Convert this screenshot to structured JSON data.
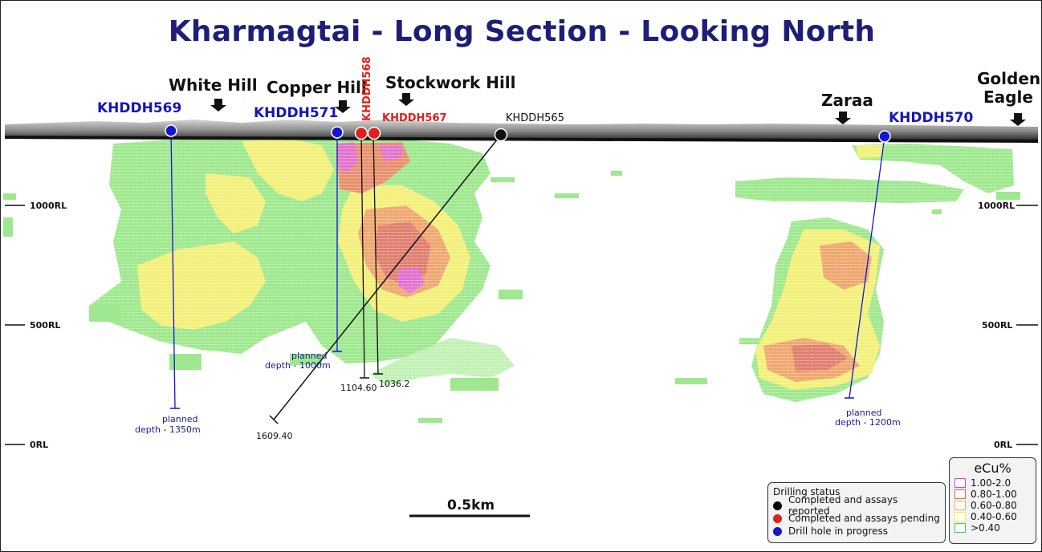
{
  "title": "Kharmagtai - Long Section - Looking North",
  "places": [
    {
      "id": "white-hill",
      "label": "White Hill"
    },
    {
      "id": "copper-hill",
      "label": "Copper Hill"
    },
    {
      "id": "stockwork-hill",
      "label": "Stockwork Hill"
    },
    {
      "id": "zaraa",
      "label": "Zaraa"
    },
    {
      "id": "golden-eagle",
      "label": "Golden",
      "label2": "Eagle"
    }
  ],
  "holes": [
    {
      "id": "KHDDH569",
      "label": "KHDDH569",
      "status": "in-progress",
      "depth_label": "planned",
      "depth_label2": "depth - 1350m"
    },
    {
      "id": "KHDDH571",
      "label": "KHDDH571",
      "status": "in-progress",
      "depth_label": "planned",
      "depth_label2": "depth - 1000m"
    },
    {
      "id": "KHDDH568",
      "label": "KHDDH568",
      "status": "pending",
      "depth_label": "1104.60"
    },
    {
      "id": "KHDDH567",
      "label": "KHDDH567",
      "status": "pending",
      "depth_label": "1036.2"
    },
    {
      "id": "KHDDH565",
      "label": "KHDDH565",
      "status": "reported",
      "depth_label": "1609.40"
    },
    {
      "id": "KHDDH570",
      "label": "KHDDH570",
      "status": "in-progress",
      "depth_label": "planned",
      "depth_label2": "depth - 1200m"
    }
  ],
  "rl_levels": [
    {
      "label": "1000RL",
      "value": 1000
    },
    {
      "label": "500RL",
      "value": 500
    },
    {
      "label": "0RL",
      "value": 0
    }
  ],
  "scale_bar": {
    "label": "0.5km"
  },
  "drilling_status": {
    "title": "Drilling status",
    "items": [
      {
        "label": "Completed and assays reported",
        "color": "#000000"
      },
      {
        "label": "Completed and assays pending",
        "color": "#e0201a"
      },
      {
        "label": "Drill hole in progress",
        "color": "#1515d0"
      }
    ]
  },
  "grade_legend": {
    "title": "eCu%",
    "items": [
      {
        "label": "1.00-2.0",
        "color": "#e040e0"
      },
      {
        "label": "0.80-1.00",
        "color": "#e8604a"
      },
      {
        "label": "0.60-0.80",
        "color": "#f0b050"
      },
      {
        "label": "0.40-0.60",
        "color": "#f0f040"
      },
      {
        "label": ">0.40",
        "color": "#40d040"
      }
    ]
  },
  "colors": {
    "title": "#1e1e78",
    "blue_hole": "#1515d0",
    "red_hole": "#e0201a",
    "green_zone": "#9fe88f",
    "yellow_zone": "#f3f07a",
    "orange_zone": "#f0a870",
    "red_zone": "#e08070",
    "magenta_zone": "#e070e0"
  }
}
